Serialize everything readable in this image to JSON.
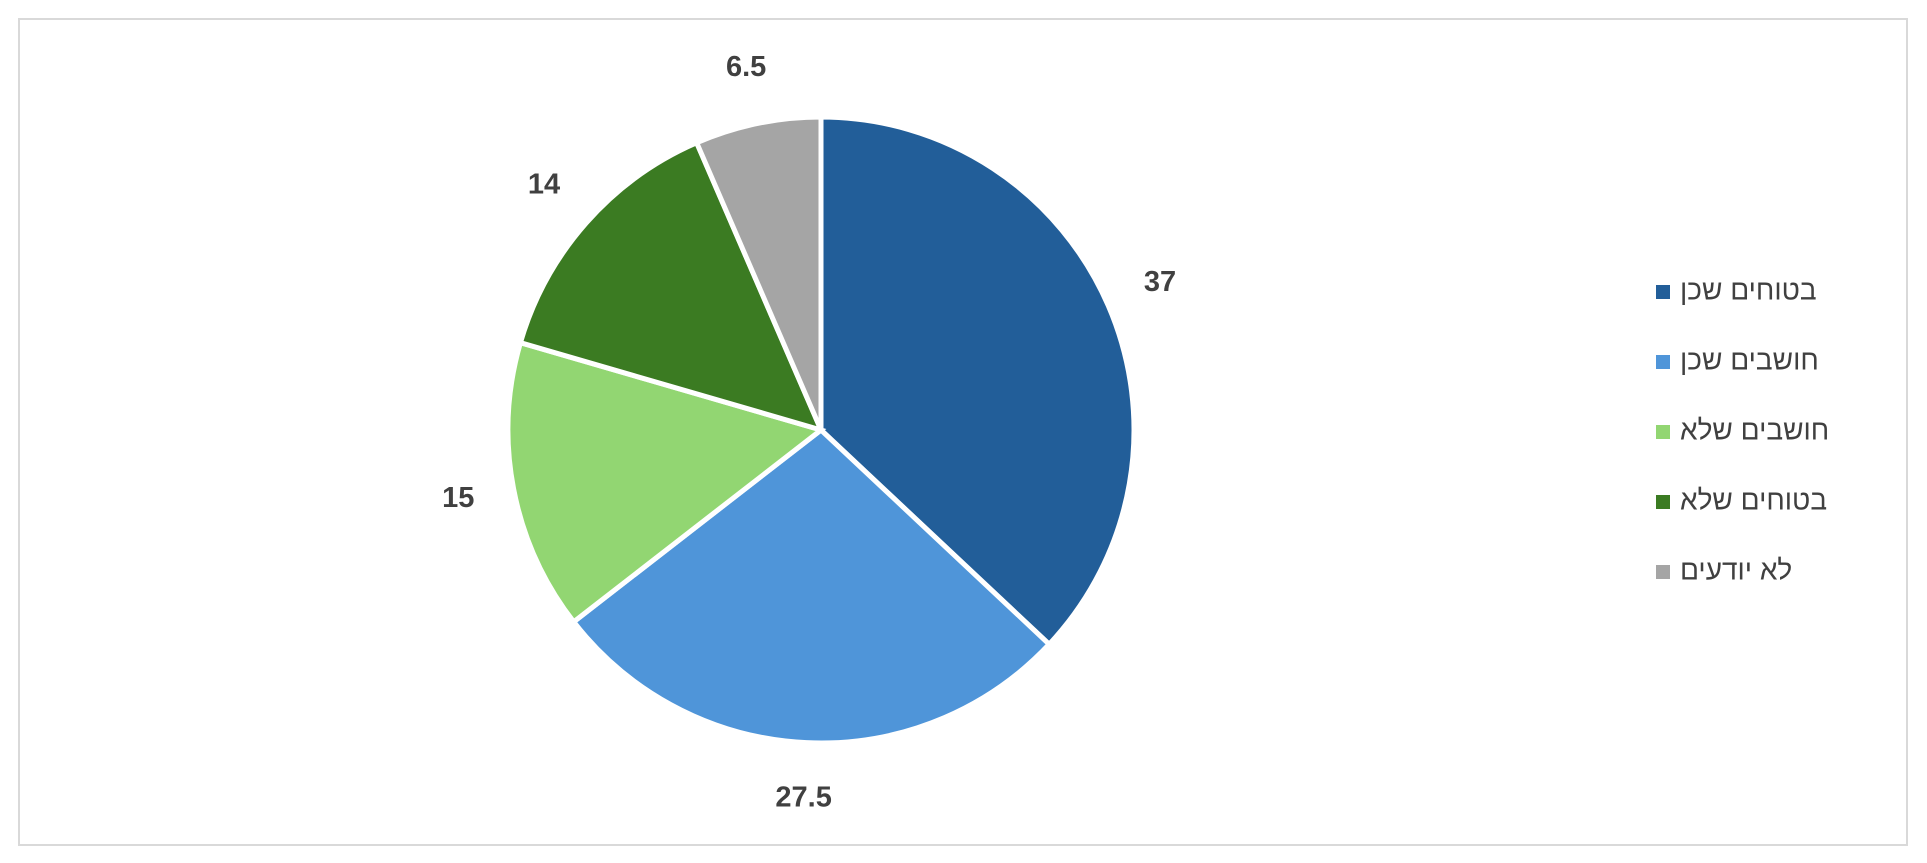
{
  "chart_data": {
    "type": "pie",
    "categories": [
      "בטוחים שכן",
      "חושבים שכן",
      "חושבים שלא",
      "בטוחים שלא",
      "לא יודעים"
    ],
    "values": [
      37,
      27.5,
      15,
      14,
      6.5
    ],
    "colors": [
      "#225e99",
      "#4f95d9",
      "#92d672",
      "#3b7b22",
      "#a5a5a5"
    ],
    "legend": "right"
  }
}
